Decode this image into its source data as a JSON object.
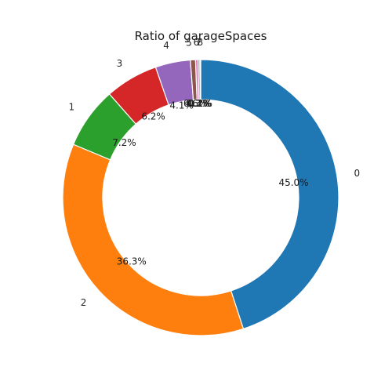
{
  "chart_data": {
    "type": "pie",
    "variant": "donut",
    "title": "Ratio of garageSpaces",
    "categories": [
      "0",
      "2",
      "1",
      "3",
      "4",
      "5",
      "6",
      "7",
      "8"
    ],
    "values": [
      45.0,
      36.3,
      7.2,
      6.2,
      4.1,
      0.6,
      0.3,
      0.2,
      0.1
    ],
    "value_labels": [
      "45.0%",
      "36.3%",
      "7.2%",
      "6.2%",
      "4.1%",
      "0.6%",
      "0.3%",
      "0.2%",
      "0.1%"
    ],
    "colors": [
      "#1f77b4",
      "#ff7f0e",
      "#2ca02c",
      "#d62728",
      "#9467bd",
      "#8c564b",
      "#e377c2",
      "#7f7f7f",
      "#bcbd22"
    ],
    "start_angle_deg": 90,
    "direction": "clockwise",
    "legend": "none",
    "grid": false
  }
}
